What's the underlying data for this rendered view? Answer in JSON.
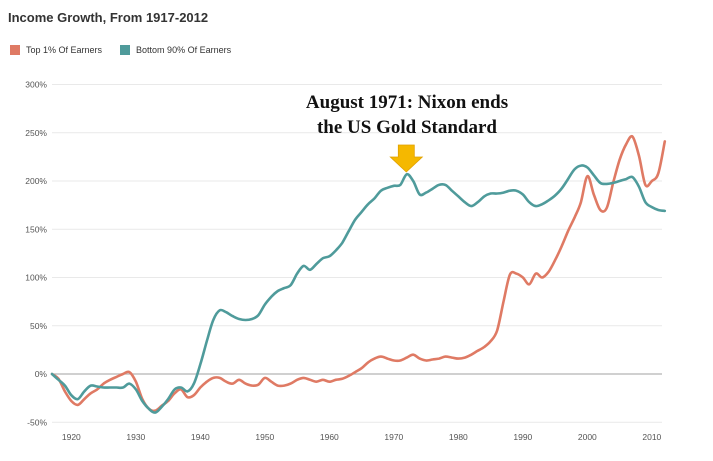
{
  "chart_data": {
    "type": "line",
    "title": "Income Growth, From 1917-2012",
    "xlabel": "",
    "ylabel": "",
    "xlim": [
      1917,
      2012
    ],
    "ylim": [
      -50,
      300
    ],
    "x_ticks": [
      1920,
      1930,
      1940,
      1950,
      1960,
      1970,
      1980,
      1990,
      2000,
      2010
    ],
    "x_tick_labels": [
      "1920",
      "1930",
      "1940",
      "1950",
      "1960",
      "1970",
      "1980",
      "1990",
      "2000",
      "2010"
    ],
    "y_ticks": [
      -50,
      0,
      50,
      100,
      150,
      200,
      250,
      300
    ],
    "y_tick_labels": [
      "-50%",
      "0%",
      "50%",
      "100%",
      "150%",
      "200%",
      "250%",
      "300%"
    ],
    "grid": "horizontal",
    "legend_position": "top-left",
    "annotation": {
      "line1": "August 1971: Nixon ends",
      "line2": "the US Gold Standard",
      "arrow_color": "#f5b800",
      "x": 1971
    },
    "series": [
      {
        "name": "Top 1% Of Earners",
        "color": "#df7a64",
        "points": [
          [
            1917,
            0
          ],
          [
            1918,
            -5
          ],
          [
            1919,
            -18
          ],
          [
            1920,
            -28
          ],
          [
            1921,
            -32
          ],
          [
            1922,
            -26
          ],
          [
            1923,
            -20
          ],
          [
            1924,
            -16
          ],
          [
            1925,
            -10
          ],
          [
            1926,
            -6
          ],
          [
            1927,
            -3
          ],
          [
            1928,
            0
          ],
          [
            1929,
            2
          ],
          [
            1930,
            -8
          ],
          [
            1931,
            -26
          ],
          [
            1932,
            -36
          ],
          [
            1933,
            -38
          ],
          [
            1934,
            -33
          ],
          [
            1935,
            -28
          ],
          [
            1936,
            -20
          ],
          [
            1937,
            -16
          ],
          [
            1938,
            -24
          ],
          [
            1939,
            -22
          ],
          [
            1940,
            -14
          ],
          [
            1941,
            -8
          ],
          [
            1942,
            -4
          ],
          [
            1943,
            -4
          ],
          [
            1944,
            -8
          ],
          [
            1945,
            -10
          ],
          [
            1946,
            -6
          ],
          [
            1947,
            -10
          ],
          [
            1948,
            -12
          ],
          [
            1949,
            -11
          ],
          [
            1950,
            -4
          ],
          [
            1951,
            -8
          ],
          [
            1952,
            -12
          ],
          [
            1953,
            -12
          ],
          [
            1954,
            -10
          ],
          [
            1955,
            -6
          ],
          [
            1956,
            -4
          ],
          [
            1957,
            -6
          ],
          [
            1958,
            -8
          ],
          [
            1959,
            -6
          ],
          [
            1960,
            -8
          ],
          [
            1961,
            -6
          ],
          [
            1962,
            -5
          ],
          [
            1963,
            -2
          ],
          [
            1964,
            2
          ],
          [
            1965,
            6
          ],
          [
            1966,
            12
          ],
          [
            1967,
            16
          ],
          [
            1968,
            18
          ],
          [
            1969,
            16
          ],
          [
            1970,
            14
          ],
          [
            1971,
            14
          ],
          [
            1972,
            17
          ],
          [
            1973,
            20
          ],
          [
            1974,
            16
          ],
          [
            1975,
            14
          ],
          [
            1976,
            15
          ],
          [
            1977,
            16
          ],
          [
            1978,
            18
          ],
          [
            1979,
            17
          ],
          [
            1980,
            16
          ],
          [
            1981,
            17
          ],
          [
            1982,
            20
          ],
          [
            1983,
            24
          ],
          [
            1984,
            28
          ],
          [
            1985,
            34
          ],
          [
            1986,
            45
          ],
          [
            1987,
            75
          ],
          [
            1988,
            103
          ],
          [
            1989,
            104
          ],
          [
            1990,
            100
          ],
          [
            1991,
            93
          ],
          [
            1992,
            104
          ],
          [
            1993,
            100
          ],
          [
            1994,
            106
          ],
          [
            1995,
            118
          ],
          [
            1996,
            132
          ],
          [
            1997,
            148
          ],
          [
            1998,
            162
          ],
          [
            1999,
            178
          ],
          [
            2000,
            205
          ],
          [
            2001,
            186
          ],
          [
            2002,
            170
          ],
          [
            2003,
            172
          ],
          [
            2004,
            198
          ],
          [
            2005,
            222
          ],
          [
            2006,
            238
          ],
          [
            2007,
            246
          ],
          [
            2008,
            226
          ],
          [
            2009,
            196
          ],
          [
            2010,
            200
          ],
          [
            2011,
            208
          ],
          [
            2012,
            241
          ]
        ]
      },
      {
        "name": "Bottom 90% Of Earners",
        "color": "#4f9b9b",
        "points": [
          [
            1917,
            0
          ],
          [
            1918,
            -6
          ],
          [
            1919,
            -12
          ],
          [
            1920,
            -22
          ],
          [
            1921,
            -26
          ],
          [
            1922,
            -18
          ],
          [
            1923,
            -12
          ],
          [
            1924,
            -13
          ],
          [
            1925,
            -14
          ],
          [
            1926,
            -14
          ],
          [
            1927,
            -14
          ],
          [
            1928,
            -14
          ],
          [
            1929,
            -10
          ],
          [
            1930,
            -16
          ],
          [
            1931,
            -28
          ],
          [
            1932,
            -36
          ],
          [
            1933,
            -40
          ],
          [
            1934,
            -34
          ],
          [
            1935,
            -26
          ],
          [
            1936,
            -16
          ],
          [
            1937,
            -14
          ],
          [
            1938,
            -18
          ],
          [
            1939,
            -10
          ],
          [
            1940,
            10
          ],
          [
            1941,
            34
          ],
          [
            1942,
            56
          ],
          [
            1943,
            66
          ],
          [
            1944,
            64
          ],
          [
            1945,
            60
          ],
          [
            1946,
            57
          ],
          [
            1947,
            56
          ],
          [
            1948,
            57
          ],
          [
            1949,
            61
          ],
          [
            1950,
            72
          ],
          [
            1951,
            80
          ],
          [
            1952,
            86
          ],
          [
            1953,
            89
          ],
          [
            1954,
            92
          ],
          [
            1955,
            104
          ],
          [
            1956,
            112
          ],
          [
            1957,
            108
          ],
          [
            1958,
            114
          ],
          [
            1959,
            120
          ],
          [
            1960,
            122
          ],
          [
            1961,
            128
          ],
          [
            1962,
            136
          ],
          [
            1963,
            148
          ],
          [
            1964,
            160
          ],
          [
            1965,
            168
          ],
          [
            1966,
            176
          ],
          [
            1967,
            182
          ],
          [
            1968,
            190
          ],
          [
            1969,
            193
          ],
          [
            1970,
            195
          ],
          [
            1971,
            196
          ],
          [
            1972,
            207
          ],
          [
            1973,
            200
          ],
          [
            1974,
            186
          ],
          [
            1975,
            188
          ],
          [
            1976,
            192
          ],
          [
            1977,
            196
          ],
          [
            1978,
            196
          ],
          [
            1979,
            190
          ],
          [
            1980,
            184
          ],
          [
            1981,
            178
          ],
          [
            1982,
            174
          ],
          [
            1983,
            178
          ],
          [
            1984,
            184
          ],
          [
            1985,
            187
          ],
          [
            1986,
            187
          ],
          [
            1987,
            188
          ],
          [
            1988,
            190
          ],
          [
            1989,
            190
          ],
          [
            1990,
            186
          ],
          [
            1991,
            178
          ],
          [
            1992,
            174
          ],
          [
            1993,
            176
          ],
          [
            1994,
            180
          ],
          [
            1995,
            185
          ],
          [
            1996,
            192
          ],
          [
            1997,
            202
          ],
          [
            1998,
            212
          ],
          [
            1999,
            216
          ],
          [
            2000,
            214
          ],
          [
            2001,
            206
          ],
          [
            2002,
            198
          ],
          [
            2003,
            197
          ],
          [
            2004,
            198
          ],
          [
            2005,
            200
          ],
          [
            2006,
            202
          ],
          [
            2007,
            204
          ],
          [
            2008,
            194
          ],
          [
            2009,
            178
          ],
          [
            2010,
            173
          ],
          [
            2011,
            170
          ],
          [
            2012,
            169
          ]
        ]
      }
    ]
  }
}
